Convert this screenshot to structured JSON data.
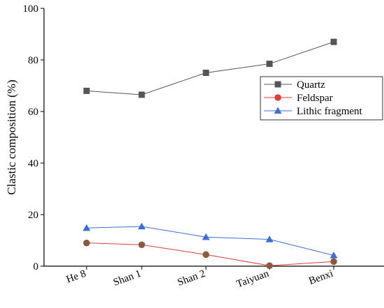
{
  "chart_data": {
    "type": "line",
    "title": "",
    "xlabel": "",
    "ylabel": "Clastic composition (%)",
    "categories": [
      "He 8",
      "Shan 1",
      "Shan 2",
      "Taiyuan",
      "Benxi"
    ],
    "ylim": [
      0,
      100
    ],
    "yticks": [
      0,
      20,
      40,
      60,
      80,
      100
    ],
    "grid": false,
    "legend_position": "right",
    "series": [
      {
        "name": "Quartz",
        "values": [
          68,
          66.5,
          75,
          78.5,
          87
        ],
        "color": "#555555",
        "marker": "square"
      },
      {
        "name": "Feldspar",
        "values": [
          9,
          8.3,
          4.5,
          0.2,
          1.8
        ],
        "color": "#e03c3c",
        "marker": "circle"
      },
      {
        "name": "Lithic fragment",
        "values": [
          14.8,
          15.4,
          11.3,
          10.4,
          4.2
        ],
        "color": "#3d6fd6",
        "marker": "triangle"
      }
    ]
  }
}
